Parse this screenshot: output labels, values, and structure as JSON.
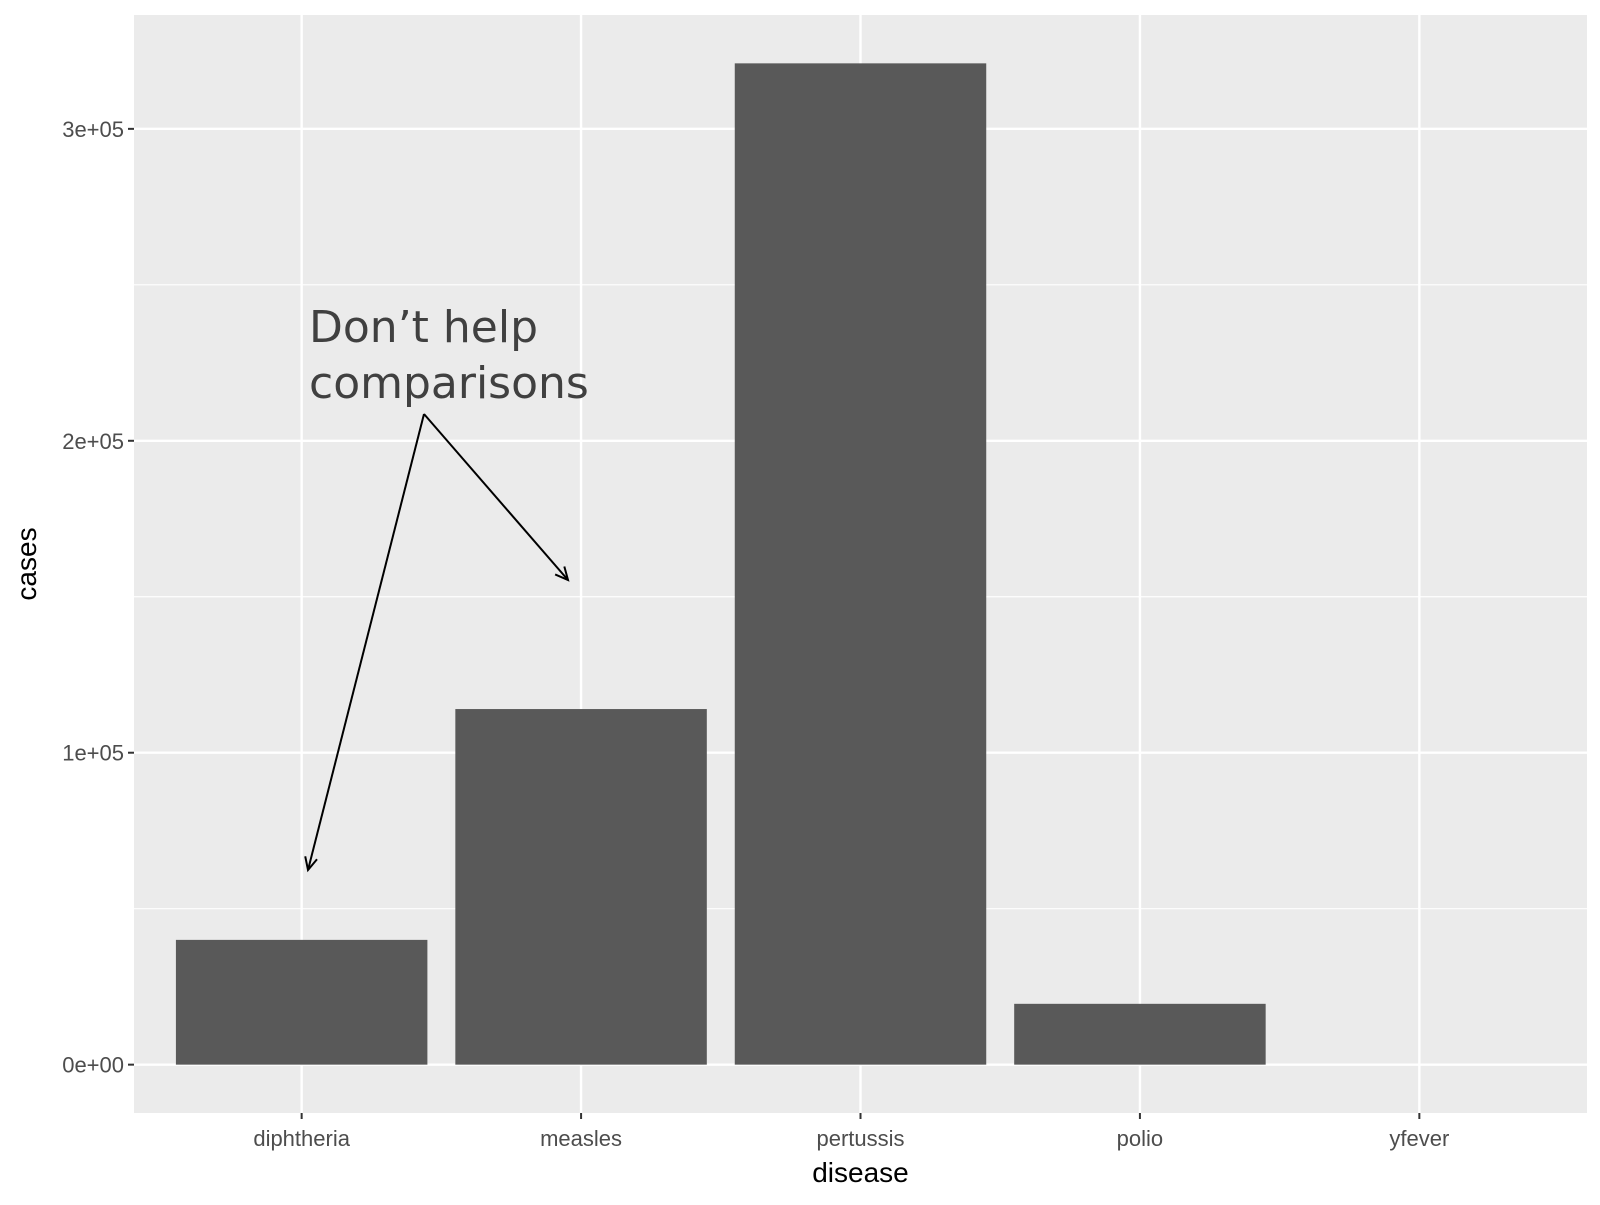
{
  "chart_data": {
    "type": "bar",
    "categories": [
      "diphtheria",
      "measles",
      "pertussis",
      "polio",
      "yfever"
    ],
    "values": [
      40000,
      114000,
      321000,
      19500,
      0
    ],
    "xlabel": "disease",
    "ylabel": "cases",
    "ylim": [
      -15500,
      336500
    ],
    "yticks": [
      0,
      100000,
      200000,
      300000
    ],
    "ytick_labels": [
      "0e+00",
      "1e+05",
      "2e+05",
      "3e+05"
    ],
    "grid": true,
    "annotation": {
      "lines": [
        "Don’t help",
        "comparisons"
      ],
      "arrow_targets": [
        "diphtheria",
        "measles"
      ]
    },
    "colors": {
      "panel": "#ebebeb",
      "bar": "#595959",
      "grid": "#ffffff",
      "annotation_text": "#404040",
      "arrow": "#000000"
    }
  }
}
